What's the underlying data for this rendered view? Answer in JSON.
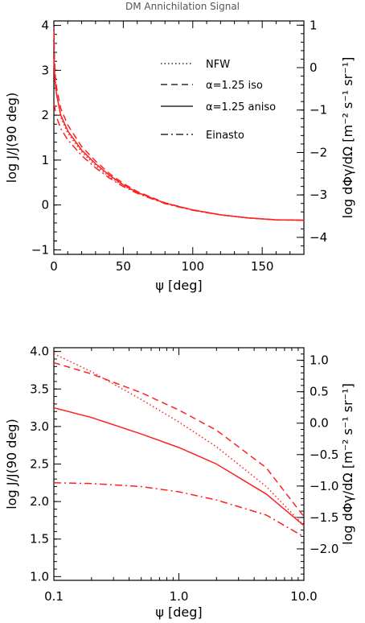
{
  "colors": {
    "curve": "#ff2020",
    "axes": "#000000"
  },
  "chart_data": [
    {
      "type": "line",
      "title": "DM Annichilation Signal",
      "xlabel": "ψ [deg]",
      "ylabel": "log J/J(90 deg)",
      "ylabel_right": "log dΦγ/dΩ [m⁻² s⁻¹ sr⁻¹]",
      "xlim": [
        0,
        180
      ],
      "ylim": [
        -1.1,
        4.1
      ],
      "ylim_right": [
        -4.4,
        1.1
      ],
      "xticks": [
        0,
        50,
        100,
        150
      ],
      "xtick_labels": [
        "0",
        "50",
        "100",
        "150"
      ],
      "yticks": [
        -1,
        0,
        1,
        2,
        3,
        4
      ],
      "ytick_labels": [
        "−1",
        "0",
        "1",
        "2",
        "3",
        "4"
      ],
      "yticks_right": [
        -4,
        -3,
        -2,
        -1,
        0,
        1
      ],
      "ytick_labels_right": [
        "−4",
        "−3",
        "−2",
        "−1",
        "0",
        "1"
      ],
      "legend_position": "top-right",
      "series": [
        {
          "name": "NFW",
          "dash": "dotted",
          "x": [
            0.1,
            0.5,
            1,
            2,
            5,
            10,
            20,
            30,
            40,
            50,
            60,
            80,
            100,
            120,
            140,
            160,
            180
          ],
          "y": [
            3.95,
            3.1,
            2.8,
            2.45,
            1.95,
            1.6,
            1.18,
            0.88,
            0.63,
            0.43,
            0.27,
            0.04,
            -0.11,
            -0.22,
            -0.29,
            -0.33,
            -0.34
          ]
        },
        {
          "name": "α=1.25 iso",
          "dash": "dashed",
          "x": [
            0.1,
            0.5,
            1,
            2,
            5,
            10,
            20,
            30,
            40,
            50,
            60,
            80,
            100,
            120,
            140,
            160,
            180
          ],
          "y": [
            3.85,
            3.2,
            2.9,
            2.6,
            2.15,
            1.78,
            1.3,
            0.98,
            0.7,
            0.48,
            0.3,
            0.05,
            -0.11,
            -0.22,
            -0.29,
            -0.33,
            -0.34
          ]
        },
        {
          "name": "α=1.25 aniso",
          "dash": "solid",
          "x": [
            0.1,
            0.5,
            1,
            2,
            5,
            10,
            20,
            30,
            40,
            50,
            60,
            80,
            100,
            120,
            140,
            160,
            180
          ],
          "y": [
            3.25,
            2.9,
            2.7,
            2.45,
            2.0,
            1.65,
            1.22,
            0.92,
            0.66,
            0.45,
            0.28,
            0.04,
            -0.11,
            -0.22,
            -0.29,
            -0.33,
            -0.34
          ]
        },
        {
          "name": "Einasto",
          "dash": "dashdot",
          "x": [
            0.1,
            0.5,
            1,
            2,
            5,
            10,
            20,
            30,
            40,
            50,
            60,
            80,
            100,
            120,
            140,
            160,
            180
          ],
          "y": [
            2.25,
            2.2,
            2.1,
            1.95,
            1.7,
            1.45,
            1.1,
            0.83,
            0.6,
            0.41,
            0.26,
            0.03,
            -0.12,
            -0.22,
            -0.29,
            -0.33,
            -0.34
          ]
        }
      ]
    },
    {
      "type": "line",
      "xscale": "log",
      "xlabel": "ψ [deg]",
      "ylabel": "log J/J(90 deg)",
      "ylabel_right": "log dΦγ/dΩ [m⁻² s⁻¹ sr⁻¹]",
      "xlim": [
        0.1,
        10.0
      ],
      "ylim": [
        0.95,
        4.05
      ],
      "ylim_right": [
        -2.5,
        1.2
      ],
      "xticks": [
        0.1,
        1.0,
        10.0
      ],
      "xtick_labels": [
        "0.1",
        "1.0",
        "10.0"
      ],
      "yticks": [
        1.0,
        1.5,
        2.0,
        2.5,
        3.0,
        3.5,
        4.0
      ],
      "ytick_labels": [
        "1.0",
        "1.5",
        "2.0",
        "2.5",
        "3.0",
        "3.5",
        "4.0"
      ],
      "yticks_right": [
        -2.0,
        -1.5,
        -1.0,
        -0.5,
        0.0,
        0.5,
        1.0
      ],
      "ytick_labels_right": [
        "−2.0",
        "−1.5",
        "−1.0",
        "−0.5",
        "0.0",
        "0.5",
        "1.0"
      ],
      "series": [
        {
          "name": "NFW",
          "dash": "dotted",
          "x": [
            0.1,
            0.2,
            0.5,
            1.0,
            2.0,
            5.0,
            10.0
          ],
          "y": [
            3.97,
            3.73,
            3.36,
            3.06,
            2.73,
            2.2,
            1.68
          ]
        },
        {
          "name": "α=1.25 iso",
          "dash": "dashed",
          "x": [
            0.1,
            0.2,
            0.5,
            1.0,
            2.0,
            5.0,
            10.0
          ],
          "y": [
            3.85,
            3.7,
            3.45,
            3.22,
            2.95,
            2.45,
            1.8
          ]
        },
        {
          "name": "α=1.25 aniso",
          "dash": "solid",
          "x": [
            0.1,
            0.2,
            0.5,
            1.0,
            2.0,
            5.0,
            10.0
          ],
          "y": [
            3.25,
            3.12,
            2.9,
            2.72,
            2.5,
            2.1,
            1.68
          ]
        },
        {
          "name": "Einasto",
          "dash": "dashdot",
          "x": [
            0.1,
            0.2,
            0.5,
            1.0,
            2.0,
            5.0,
            10.0
          ],
          "y": [
            2.25,
            2.24,
            2.2,
            2.13,
            2.02,
            1.82,
            1.53
          ]
        }
      ]
    }
  ]
}
